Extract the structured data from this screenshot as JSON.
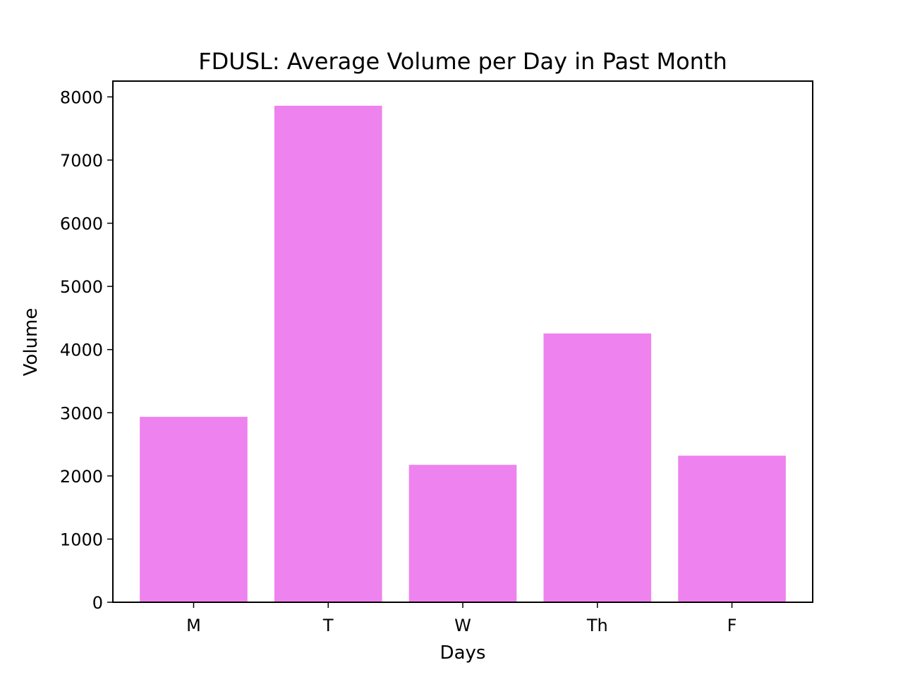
{
  "chart_data": {
    "type": "bar",
    "title": "FDUSL: Average Volume per Day in Past Month",
    "xlabel": "Days",
    "ylabel": "Volume",
    "categories": [
      "M",
      "T",
      "W",
      "Th",
      "F"
    ],
    "values": [
      2935,
      7860,
      2175,
      4255,
      2320
    ],
    "ylim": [
      0,
      8250
    ],
    "yticks": [
      0,
      1000,
      2000,
      3000,
      4000,
      5000,
      6000,
      7000,
      8000
    ],
    "bar_color": "#ee82ee",
    "grid": false,
    "legend": "none"
  }
}
